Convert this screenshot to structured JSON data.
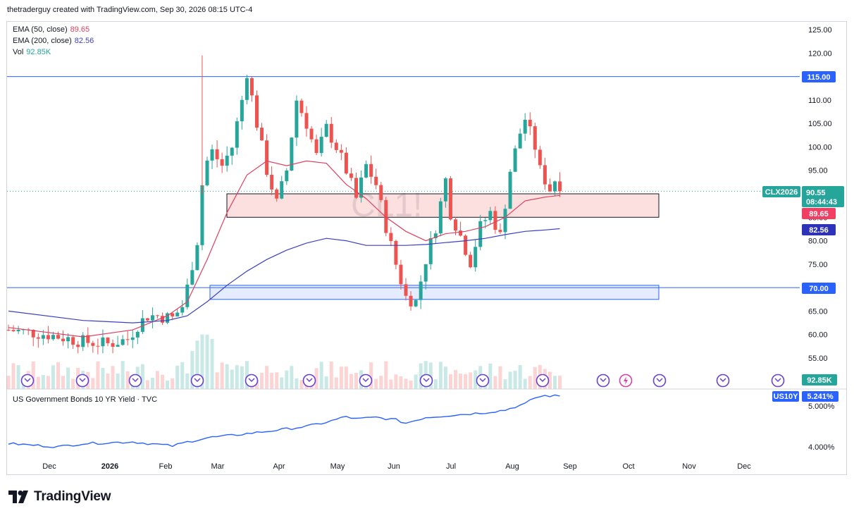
{
  "header": {
    "text": "thetraderguy created with TradingView.com, Sep 30, 2026 08:15 UTC-4"
  },
  "indicators": [
    {
      "label": "EMA (50, close)",
      "value": "89.65",
      "color": "#e0405f"
    },
    {
      "label": "EMA (200, close)",
      "value": "82.56",
      "color": "#3b3fc4"
    },
    {
      "label": "Vol",
      "value": "92.85K",
      "color": "#26a69a"
    }
  ],
  "watermark": "CL1!",
  "lower_pane": {
    "title": "US Government Bonds 10 YR Yield · TVC"
  },
  "badges": {
    "symbol": "CLX2026",
    "price": "90.55",
    "countdown": "08:44:43",
    "ema50": "89.65",
    "ema200": "82.56",
    "level115": "115.00",
    "level70": "70.00",
    "vol": "92.85K",
    "yield_symbol": "US10Y",
    "yield_value": "5.241%"
  },
  "colors": {
    "up": "#26a69a",
    "down": "#ef5350",
    "ema50": "#e0405f",
    "ema200": "#3b3fc4",
    "yield": "#2962ff",
    "accent": "#2962ff"
  },
  "brand": "TradingView",
  "chart_data": [
    {
      "type": "candlestick",
      "title": "CL1!",
      "x_labels": [
        "Dec",
        "2026",
        "Feb",
        "Mar",
        "Apr",
        "May",
        "Jun",
        "Jul",
        "Aug",
        "Sep",
        "Oct",
        "Nov",
        "Dec"
      ],
      "y_ticks": [
        55,
        60,
        65,
        70,
        75,
        80,
        85,
        90,
        95,
        100,
        105,
        110,
        115,
        120,
        125
      ],
      "y_tick_labels": [
        "55.00",
        "60.00",
        "65.00",
        "70.00",
        "75.00",
        "80.00",
        "85.00",
        "90.00",
        "95.00",
        "100.00",
        "105.00",
        "110.00",
        "115.00",
        "120.00",
        "125.00"
      ],
      "ylim": [
        52,
        127
      ],
      "horizontal_lines": [
        115,
        70
      ],
      "zones": [
        {
          "name": "resistance-support-zone",
          "low": 85,
          "high": 90
        },
        {
          "name": "demand-zone",
          "low": 67.5,
          "high": 70.5
        }
      ],
      "price_path": [
        [
          0,
          61
        ],
        [
          8,
          60
        ],
        [
          15,
          58.5
        ],
        [
          20,
          58
        ],
        [
          24,
          59
        ],
        [
          26,
          62
        ],
        [
          28,
          64
        ],
        [
          30,
          64
        ],
        [
          33,
          63.5
        ],
        [
          35,
          66
        ],
        [
          36,
          70
        ],
        [
          38,
          80
        ],
        [
          39,
          92
        ],
        [
          40,
          97
        ],
        [
          41,
          99
        ],
        [
          43,
          96
        ],
        [
          45,
          100
        ],
        [
          47,
          110
        ],
        [
          48,
          116
        ],
        [
          50,
          105
        ],
        [
          52,
          95
        ],
        [
          54,
          88
        ],
        [
          56,
          95
        ],
        [
          58,
          110
        ],
        [
          60,
          105
        ],
        [
          62,
          98
        ],
        [
          64,
          104
        ],
        [
          66,
          100
        ],
        [
          68,
          95
        ],
        [
          70,
          89
        ],
        [
          72,
          96
        ],
        [
          74,
          92
        ],
        [
          76,
          83
        ],
        [
          78,
          75
        ],
        [
          80,
          68
        ],
        [
          82,
          67
        ],
        [
          84,
          76
        ],
        [
          86,
          83
        ],
        [
          88,
          93
        ],
        [
          89,
          86
        ],
        [
          91,
          81
        ],
        [
          93,
          75.5
        ],
        [
          95,
          83
        ],
        [
          97,
          86
        ],
        [
          99,
          81
        ],
        [
          101,
          95
        ],
        [
          103,
          103
        ],
        [
          104,
          106
        ],
        [
          106,
          100
        ],
        [
          107,
          95
        ],
        [
          109,
          91
        ],
        [
          110,
          93
        ],
        [
          111,
          90.55
        ]
      ],
      "price_bar_count": 112,
      "ema50": [
        [
          0,
          61.5
        ],
        [
          15,
          59.5
        ],
        [
          25,
          61
        ],
        [
          32,
          64
        ],
        [
          36,
          67
        ],
        [
          40,
          76
        ],
        [
          44,
          86
        ],
        [
          48,
          94
        ],
        [
          52,
          97
        ],
        [
          56,
          96
        ],
        [
          60,
          97
        ],
        [
          64,
          96.5
        ],
        [
          68,
          92
        ],
        [
          72,
          89
        ],
        [
          76,
          85
        ],
        [
          80,
          82
        ],
        [
          84,
          80
        ],
        [
          88,
          81.5
        ],
        [
          92,
          82
        ],
        [
          96,
          83
        ],
        [
          100,
          85
        ],
        [
          104,
          88.5
        ],
        [
          108,
          89.3
        ],
        [
          111,
          89.65
        ]
      ],
      "ema200": [
        [
          0,
          65
        ],
        [
          15,
          63
        ],
        [
          25,
          62.5
        ],
        [
          32,
          63
        ],
        [
          36,
          64
        ],
        [
          40,
          67
        ],
        [
          44,
          70.5
        ],
        [
          48,
          73.5
        ],
        [
          52,
          76
        ],
        [
          56,
          78
        ],
        [
          60,
          79.5
        ],
        [
          64,
          80.5
        ],
        [
          68,
          80
        ],
        [
          72,
          79
        ],
        [
          76,
          79
        ],
        [
          80,
          79
        ],
        [
          84,
          79.2
        ],
        [
          88,
          79.6
        ],
        [
          92,
          80
        ],
        [
          96,
          80.5
        ],
        [
          100,
          81.3
        ],
        [
          104,
          82
        ],
        [
          108,
          82.3
        ],
        [
          111,
          82.56
        ]
      ],
      "volume": {
        "last": "92.85K"
      },
      "annotations": [
        "115.00",
        "70.00",
        "90.55",
        "89.65",
        "82.56"
      ]
    },
    {
      "type": "line",
      "title": "US Government Bonds 10 YR Yield · TVC",
      "y_ticks": [
        4,
        5
      ],
      "y_tick_labels": [
        "4.000%",
        "5.000%"
      ],
      "ylim": [
        3.6,
        5.4
      ],
      "series": [
        {
          "name": "US10Y",
          "values": [
            [
              0,
              4.08
            ],
            [
              10,
              4.0
            ],
            [
              15,
              4.08
            ],
            [
              20,
              4.1
            ],
            [
              25,
              4.12
            ],
            [
              30,
              4.06
            ],
            [
              33,
              4.02
            ],
            [
              36,
              4.12
            ],
            [
              40,
              4.22
            ],
            [
              45,
              4.28
            ],
            [
              50,
              4.35
            ],
            [
              55,
              4.42
            ],
            [
              60,
              4.5
            ],
            [
              64,
              4.6
            ],
            [
              68,
              4.74
            ],
            [
              70,
              4.68
            ],
            [
              74,
              4.72
            ],
            [
              78,
              4.66
            ],
            [
              80,
              4.58
            ],
            [
              84,
              4.72
            ],
            [
              88,
              4.76
            ],
            [
              92,
              4.8
            ],
            [
              96,
              4.84
            ],
            [
              100,
              4.9
            ],
            [
              102,
              4.98
            ],
            [
              104,
              5.05
            ],
            [
              106,
              5.2
            ],
            [
              108,
              5.25
            ],
            [
              111,
              5.241
            ]
          ]
        }
      ],
      "last": "5.241%"
    }
  ]
}
